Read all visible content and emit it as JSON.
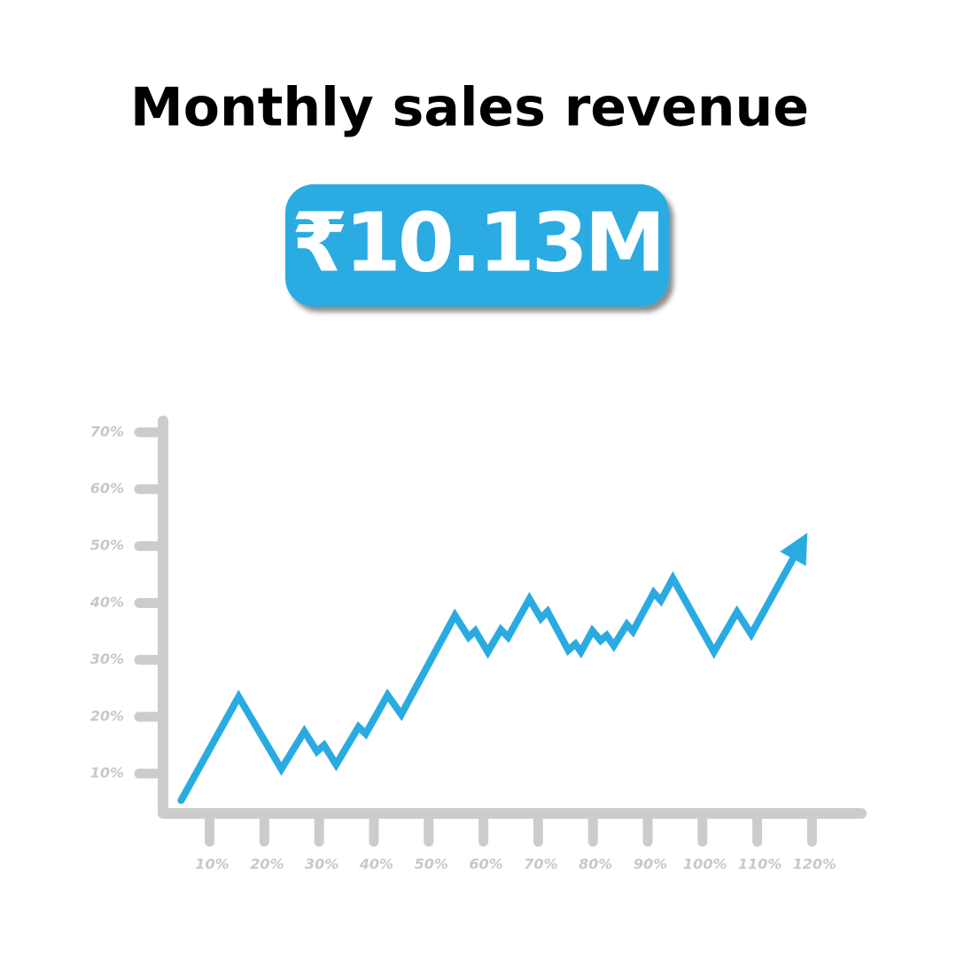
{
  "chart_data": {
    "type": "line",
    "title": "Monthly sales revenue",
    "headline": "₹10.13M",
    "color": "#29abe2",
    "x": [
      4.8,
      15.3,
      23.1,
      27.3,
      29.6,
      30.9,
      33.1,
      37.2,
      38.5,
      42.5,
      45.0,
      54.8,
      57.3,
      58.5,
      60.8,
      63.2,
      64.5,
      68.4,
      70.5,
      71.7,
      75.5,
      76.8,
      77.8,
      79.9,
      81.4,
      82.5,
      83.8,
      86.2,
      87.3,
      91.1,
      92.4,
      94.6,
      102.1,
      106.3,
      108.9,
      118.1
    ],
    "values": [
      5.3,
      23.5,
      10.8,
      17.4,
      13.9,
      15.0,
      11.6,
      18.2,
      17.0,
      23.8,
      20.4,
      37.8,
      34.0,
      35.1,
      31.4,
      35.3,
      34.0,
      40.7,
      37.3,
      38.5,
      31.7,
      32.8,
      31.4,
      35.1,
      33.4,
      34.3,
      32.5,
      36.2,
      35.0,
      41.8,
      40.4,
      44.3,
      31.4,
      38.4,
      34.5,
      50.5
    ],
    "xlim": [
      1.5,
      129
    ],
    "ylim": [
      3,
      72
    ],
    "xticks": [
      {
        "value": 10,
        "label": "10%"
      },
      {
        "value": 20,
        "label": "20%"
      },
      {
        "value": 30,
        "label": "30%"
      },
      {
        "value": 40,
        "label": "40%"
      },
      {
        "value": 50,
        "label": "50%"
      },
      {
        "value": 60,
        "label": "60%"
      },
      {
        "value": 70,
        "label": "70%"
      },
      {
        "value": 80,
        "label": "80%"
      },
      {
        "value": 90,
        "label": "90%"
      },
      {
        "value": 100,
        "label": "100%"
      },
      {
        "value": 110,
        "label": "110%"
      },
      {
        "value": 120,
        "label": "120%"
      }
    ],
    "yticks": [
      {
        "value": 10,
        "label": "10%"
      },
      {
        "value": 20,
        "label": "20%"
      },
      {
        "value": 30,
        "label": "30%"
      },
      {
        "value": 40,
        "label": "40%"
      },
      {
        "value": 50,
        "label": "50%"
      },
      {
        "value": 60,
        "label": "60%"
      },
      {
        "value": 70,
        "label": "70%"
      }
    ]
  }
}
